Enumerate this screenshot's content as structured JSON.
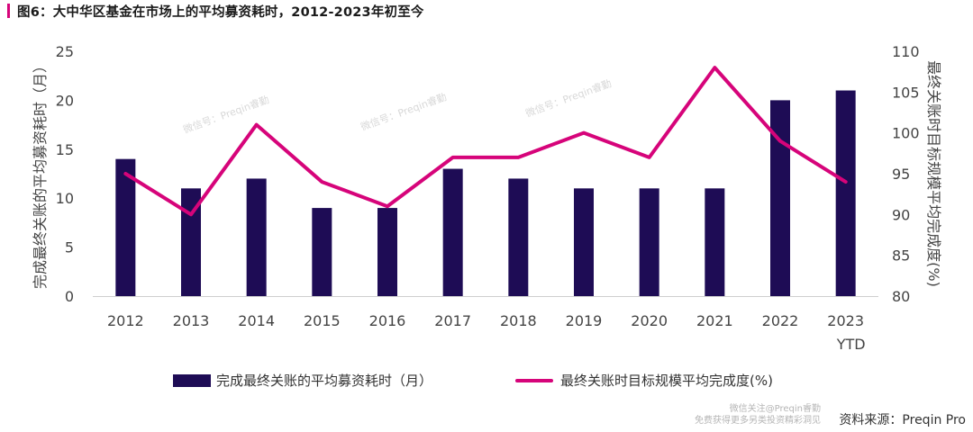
{
  "header": {
    "title": "图6：大中华区基金在市场上的平均募资耗时，2012-2023年初至今"
  },
  "colors": {
    "bar": "#1e0c55",
    "line": "#d6047a",
    "accent": "#d6047a",
    "axis": "#cfcfcf"
  },
  "watermark": "微信号：Preqin睿勤",
  "footer": {
    "wechat_line1": "微信关注@Preqin睿勤",
    "wechat_line2": "免费获得更多另类投资精彩洞见",
    "source": "资料来源：Preqin Pro"
  },
  "chart_data": {
    "type": "bar",
    "categories": [
      "2012",
      "2013",
      "2014",
      "2015",
      "2016",
      "2017",
      "2018",
      "2019",
      "2020",
      "2021",
      "2022",
      "2023"
    ],
    "category_sublabels": [
      "",
      "",
      "",
      "",
      "",
      "",
      "",
      "",
      "",
      "",
      "",
      "YTD"
    ],
    "series": [
      {
        "name": "完成最终关账的平均募资耗时（月）",
        "type": "bar",
        "axis": "left",
        "values": [
          14,
          11,
          12,
          9,
          9,
          13,
          12,
          11,
          11,
          11,
          20,
          21
        ]
      },
      {
        "name": "最终关账时目标规模平均完成度(%)",
        "type": "line",
        "axis": "right",
        "values": [
          95,
          90,
          101,
          94,
          91,
          97,
          97,
          100,
          97,
          108,
          99,
          94
        ]
      }
    ],
    "ylabel_left": "完成最终关账的平均募资耗时（月）",
    "ylabel_right": "最终关账时目标规模平均完成度(%)",
    "ylim_left": [
      0,
      25
    ],
    "yticks_left": [
      0,
      5,
      10,
      15,
      20,
      25
    ],
    "ylim_right": [
      80,
      110
    ],
    "yticks_right": [
      80,
      85,
      90,
      95,
      100,
      105,
      110
    ],
    "grid": false,
    "legend": "bottom"
  }
}
